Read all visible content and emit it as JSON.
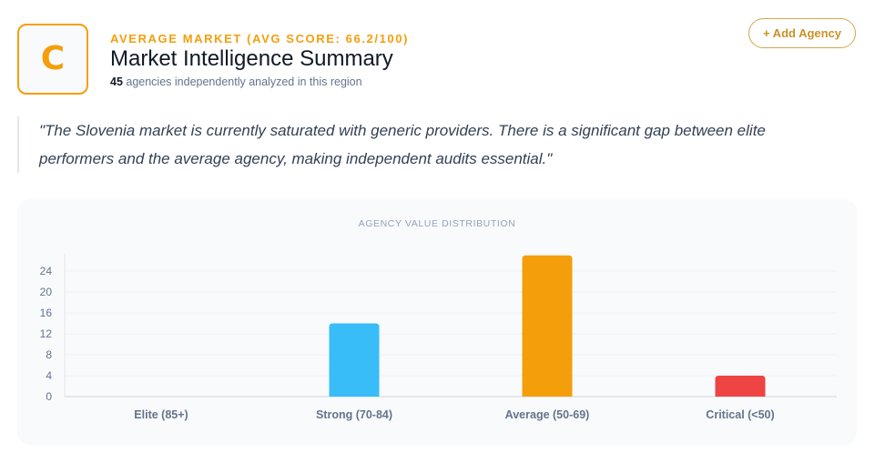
{
  "header": {
    "grade": "C",
    "overline": "AVERAGE MARKET (AVG SCORE: 66.2/100)",
    "title": "Market Intelligence Summary",
    "agency_count": "45",
    "subtitle_rest": " agencies independently analyzed in this region",
    "add_button_label": "+ Add Agency"
  },
  "quote": "\"The Slovenia market is currently saturated with generic providers. There is a significant gap between elite performers and the average agency, making independent audits essential.\"",
  "colors": {
    "accent": "#f59e0b",
    "bar_strong": "#38bdf8",
    "bar_average": "#f59e0b",
    "bar_critical": "#ef4444"
  },
  "chart_data": {
    "type": "bar",
    "title": "AGENCY VALUE DISTRIBUTION",
    "categories": [
      "Elite (85+)",
      "Strong (70-84)",
      "Average (50-69)",
      "Critical (<50)"
    ],
    "values": [
      0,
      14,
      27,
      4
    ],
    "colors": [
      "#38bdf8",
      "#38bdf8",
      "#f59e0b",
      "#ef4444"
    ],
    "yticks": [
      0,
      4,
      8,
      12,
      16,
      20,
      24
    ],
    "ylim": [
      0,
      27
    ],
    "xlabel": "",
    "ylabel": "",
    "grid": true,
    "legend": "none"
  }
}
